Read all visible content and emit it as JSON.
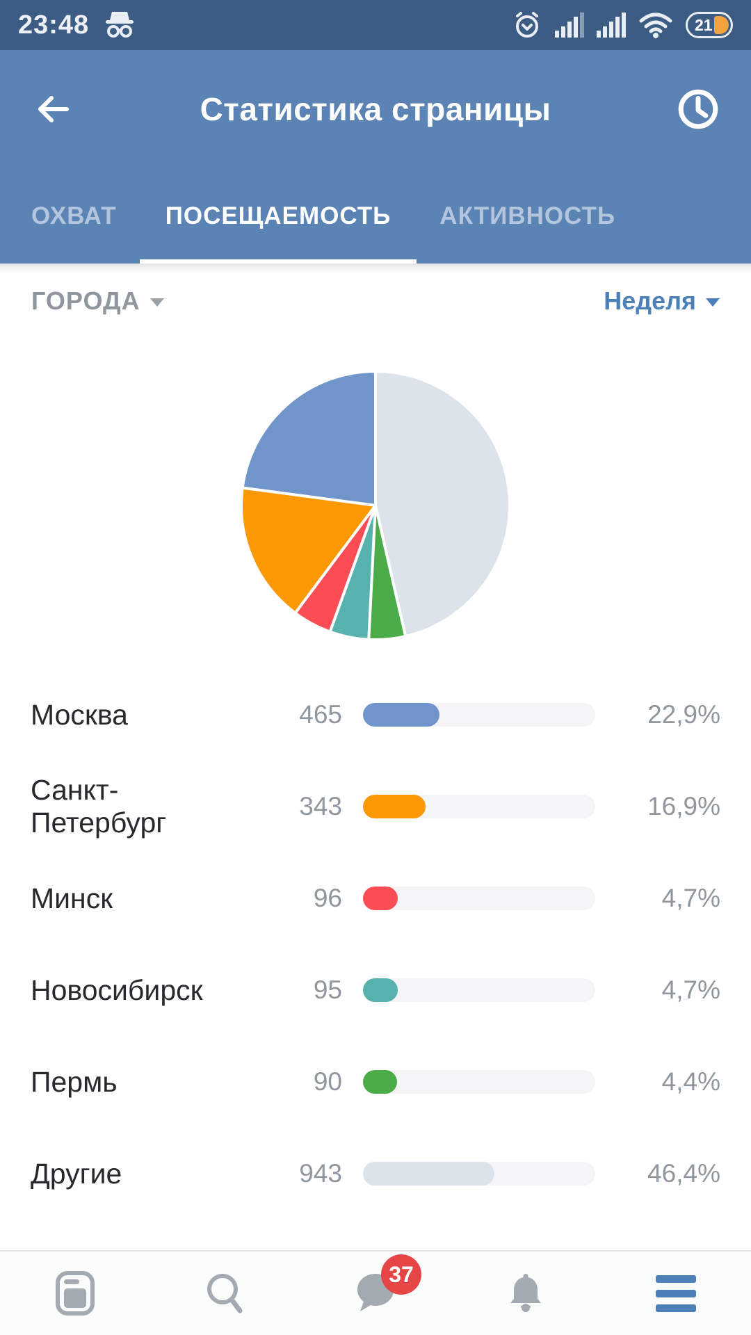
{
  "status_bar": {
    "time": "23:48",
    "battery_percent": "21",
    "icons": [
      "incognito-icon",
      "alarm-icon",
      "signal-sim1-icon",
      "signal-sim2-icon",
      "wifi-icon",
      "battery-icon"
    ],
    "battery_fill_color": "#f2a33c",
    "background_color": "#3c5c84"
  },
  "header": {
    "title": "Статистика страницы",
    "back_icon": "arrow-left-icon",
    "history_icon": "clock-history-icon",
    "background_color": "#5b83b4"
  },
  "tabs": [
    {
      "label": "ОХВАТ",
      "active": false
    },
    {
      "label": "ПОСЕЩАЕМОСТЬ",
      "active": true
    },
    {
      "label": "АКТИВНОСТЬ",
      "active": false
    }
  ],
  "filters": {
    "dimension": "ГОРОДА",
    "period": "Неделя",
    "period_color": "#4c80b8"
  },
  "chart_data": {
    "type": "pie",
    "title": "",
    "legend": "none",
    "direction": "counterclockwise-from-top",
    "gap_stroke_color": "#ffffff",
    "slices": [
      {
        "label": "Москва",
        "value": 465,
        "percent": 22.9,
        "percent_label": "22,9%",
        "color": "#6f95ca"
      },
      {
        "label": "Санкт-Петербург",
        "value": 343,
        "percent": 16.9,
        "percent_label": "16,9%",
        "color": "#fb9904"
      },
      {
        "label": "Минск",
        "value": 96,
        "percent": 4.7,
        "percent_label": "4,7%",
        "color": "#fb4d53"
      },
      {
        "label": "Новосибирск",
        "value": 95,
        "percent": 4.7,
        "percent_label": "4,7%",
        "color": "#57b2ad"
      },
      {
        "label": "Пермь",
        "value": 90,
        "percent": 4.4,
        "percent_label": "4,4%",
        "color": "#4cab49"
      },
      {
        "label": "Другие",
        "value": 943,
        "percent": 46.4,
        "percent_label": "46,4%",
        "color": "#dde3eb"
      }
    ]
  },
  "bottom_nav": {
    "items": [
      {
        "icon": "news-icon",
        "active": false
      },
      {
        "icon": "search-icon",
        "active": false
      },
      {
        "icon": "messages-icon",
        "active": false,
        "badge": "37"
      },
      {
        "icon": "notifications-bell-icon",
        "active": false
      },
      {
        "icon": "menu-icon",
        "active": true
      }
    ],
    "badge_color": "#e64545",
    "icon_color": "#a4aab1",
    "active_color": "#4d80b8"
  }
}
